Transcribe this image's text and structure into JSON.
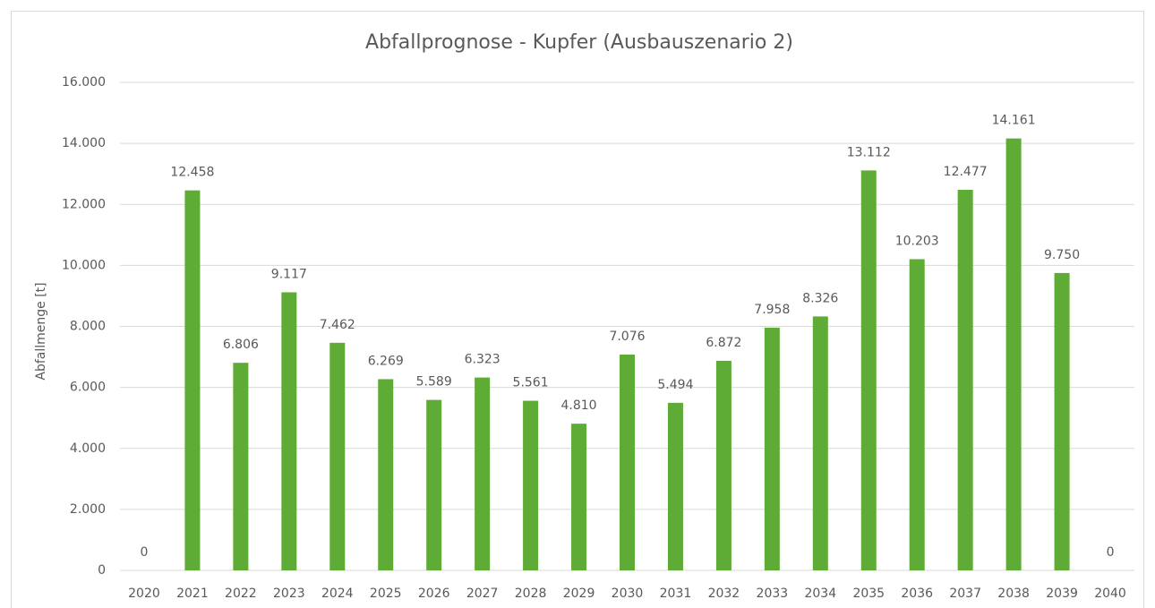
{
  "chart_data": {
    "type": "bar",
    "title": "Abfallprognose - Kupfer (Ausbauszenario 2)",
    "y_label": "Abfallmenge [t]",
    "categories": [
      "2020",
      "2021",
      "2022",
      "2023",
      "2024",
      "2025",
      "2026",
      "2027",
      "2028",
      "2029",
      "2030",
      "2031",
      "2032",
      "2033",
      "2034",
      "2035",
      "2036",
      "2037",
      "2038",
      "2039",
      "2040"
    ],
    "values": [
      0,
      12458,
      6806,
      9117,
      7462,
      6269,
      5589,
      6323,
      5561,
      4810,
      7076,
      5494,
      6872,
      7958,
      8326,
      13112,
      10203,
      12477,
      14161,
      9750,
      0
    ],
    "value_labels": [
      "0",
      "12.458",
      "6.806",
      "9.117",
      "7.462",
      "6.269",
      "5.589",
      "6.323",
      "5.561",
      "4.810",
      "7.076",
      "5.494",
      "6.872",
      "7.958",
      "8.326",
      "13.112",
      "10.203",
      "12.477",
      "14.161",
      "9.750",
      "0"
    ],
    "color": "#5eab35",
    "ylim": [
      0,
      16000
    ],
    "yticks": [
      0,
      {
        "value": 2000,
        "label": "2.000"
      },
      {
        "value": 4000,
        "label": "4.000"
      },
      {
        "value": 6000,
        "label": "6.000"
      },
      {
        "value": 8000,
        "label": "8.000"
      },
      {
        "value": 10000,
        "label": "10.000"
      },
      {
        "value": 12000,
        "label": "12.000"
      },
      {
        "value": 14000,
        "label": "14.000"
      },
      {
        "value": 16000,
        "label": "16.000"
      }
    ],
    "grid": true
  }
}
